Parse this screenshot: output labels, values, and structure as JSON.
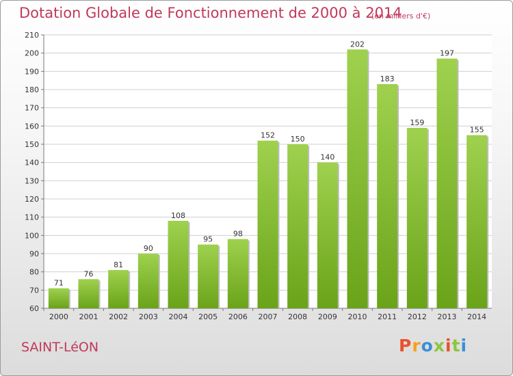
{
  "title": "Dotation Globale de Fonctionnement de 2000 à 2014",
  "unit_note": "(en milliers d'€)",
  "commune": "SAINT-LéON",
  "logo_text": "Proxiti",
  "colors": {
    "bar_light": "#9fd14e",
    "bar_dark": "#6aa31a",
    "title": "#c0395a",
    "logo": [
      "#e8522c",
      "#f4a11d",
      "#3a8fd8",
      "#8cc63f",
      "#e8522c",
      "#8cc63f",
      "#3a8fd8"
    ]
  },
  "chart_data": {
    "type": "bar",
    "title": "Dotation Globale de Fonctionnement de 2000 à 2014",
    "categories": [
      "2000",
      "2001",
      "2002",
      "2003",
      "2004",
      "2005",
      "2006",
      "2007",
      "2008",
      "2009",
      "2010",
      "2011",
      "2012",
      "2013",
      "2014"
    ],
    "values": [
      71,
      76,
      81,
      90,
      108,
      95,
      98,
      152,
      150,
      140,
      202,
      183,
      159,
      197,
      155
    ],
    "ylim": [
      60,
      210
    ],
    "yticks": [
      60,
      70,
      80,
      90,
      100,
      110,
      120,
      130,
      140,
      150,
      160,
      170,
      180,
      190,
      200,
      210
    ],
    "grid": true,
    "xlabel": "",
    "ylabel": ""
  }
}
